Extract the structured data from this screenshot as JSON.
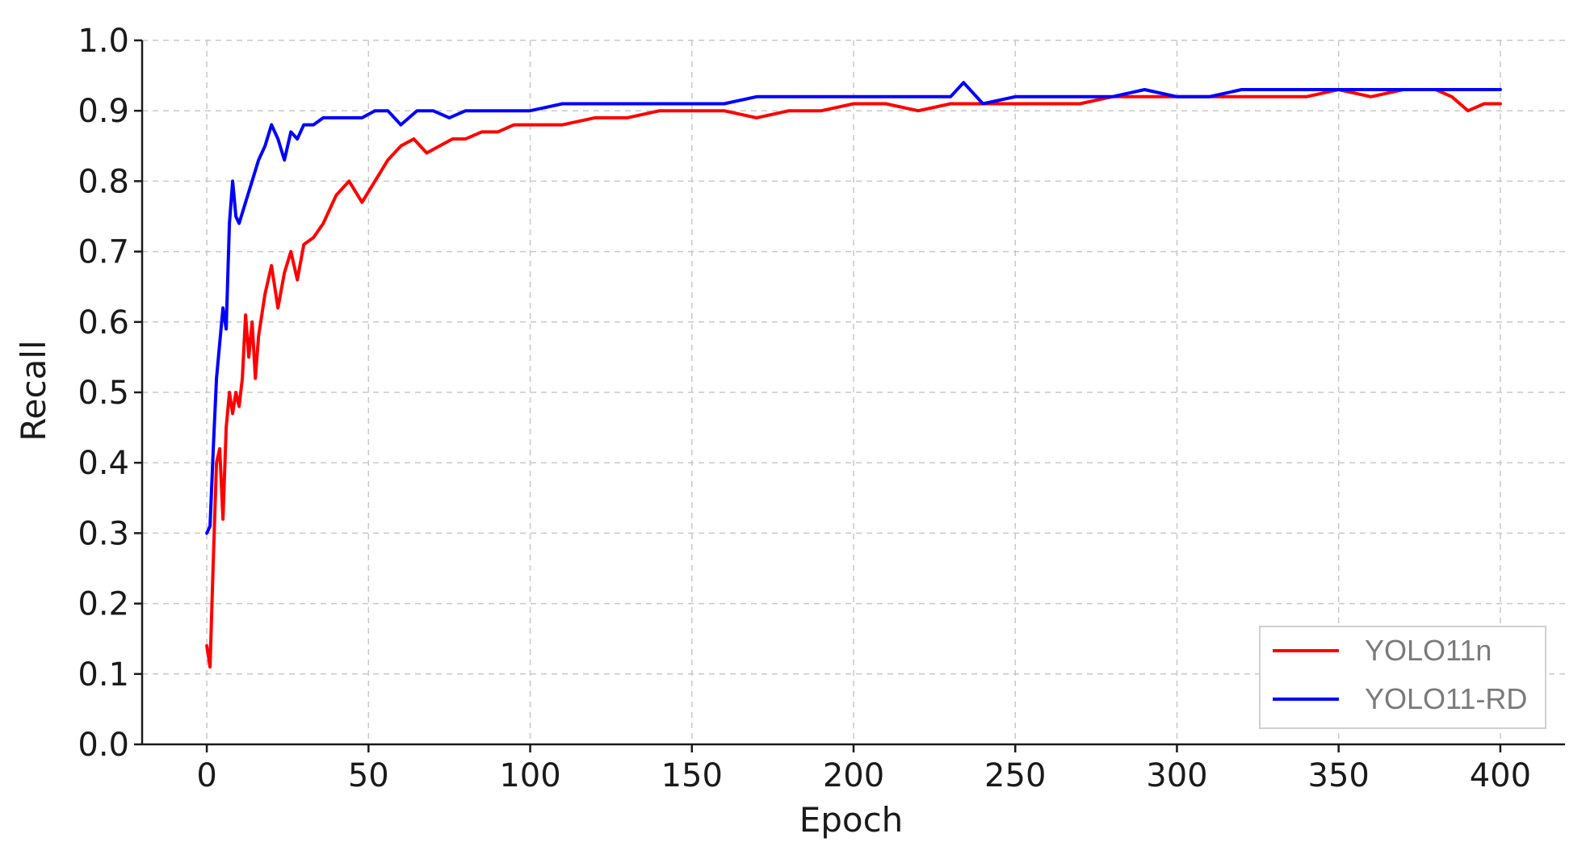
{
  "chart_data": {
    "type": "line",
    "title": "",
    "xlabel": "Epoch",
    "ylabel": "Recall",
    "xlim": [
      -20,
      420
    ],
    "ylim": [
      0.0,
      1.0
    ],
    "xticks": [
      "0",
      "50",
      "100",
      "150",
      "200",
      "250",
      "300",
      "350",
      "400"
    ],
    "yticks": [
      "0.0",
      "0.1",
      "0.2",
      "0.3",
      "0.4",
      "0.5",
      "0.6",
      "0.7",
      "0.8",
      "0.9",
      "1.0"
    ],
    "grid": true,
    "legend_position": "lower-right",
    "series": [
      {
        "name": "YOLO11n",
        "color": "#ff0000",
        "x": [
          0,
          1,
          2,
          3,
          4,
          5,
          6,
          7,
          8,
          9,
          10,
          11,
          12,
          13,
          14,
          15,
          16,
          18,
          20,
          22,
          24,
          26,
          28,
          30,
          33,
          36,
          40,
          44,
          48,
          52,
          56,
          60,
          64,
          68,
          72,
          76,
          80,
          85,
          90,
          95,
          100,
          110,
          120,
          130,
          140,
          150,
          160,
          170,
          180,
          190,
          200,
          210,
          220,
          230,
          240,
          250,
          260,
          270,
          280,
          290,
          300,
          310,
          320,
          330,
          340,
          350,
          360,
          370,
          380,
          385,
          390,
          395,
          400
        ],
        "values": [
          0.14,
          0.11,
          0.26,
          0.4,
          0.42,
          0.32,
          0.45,
          0.5,
          0.47,
          0.5,
          0.48,
          0.52,
          0.61,
          0.55,
          0.6,
          0.52,
          0.58,
          0.64,
          0.68,
          0.62,
          0.67,
          0.7,
          0.66,
          0.71,
          0.72,
          0.74,
          0.78,
          0.8,
          0.77,
          0.8,
          0.83,
          0.85,
          0.86,
          0.84,
          0.85,
          0.86,
          0.86,
          0.87,
          0.87,
          0.88,
          0.88,
          0.88,
          0.89,
          0.89,
          0.9,
          0.9,
          0.9,
          0.89,
          0.9,
          0.9,
          0.91,
          0.91,
          0.9,
          0.91,
          0.91,
          0.91,
          0.91,
          0.91,
          0.92,
          0.92,
          0.92,
          0.92,
          0.92,
          0.92,
          0.92,
          0.93,
          0.92,
          0.93,
          0.93,
          0.92,
          0.9,
          0.91,
          0.91
        ]
      },
      {
        "name": "YOLO11-RD",
        "color": "#0000ff",
        "x": [
          0,
          1,
          2,
          3,
          4,
          5,
          6,
          7,
          8,
          9,
          10,
          12,
          14,
          16,
          18,
          20,
          22,
          24,
          26,
          28,
          30,
          33,
          36,
          40,
          44,
          48,
          52,
          56,
          60,
          65,
          70,
          75,
          80,
          90,
          100,
          110,
          120,
          130,
          140,
          150,
          160,
          170,
          180,
          190,
          200,
          210,
          220,
          230,
          234,
          240,
          250,
          260,
          270,
          280,
          290,
          300,
          310,
          320,
          330,
          340,
          350,
          360,
          370,
          380,
          390,
          400
        ],
        "values": [
          0.3,
          0.31,
          0.42,
          0.52,
          0.57,
          0.62,
          0.59,
          0.74,
          0.8,
          0.75,
          0.74,
          0.77,
          0.8,
          0.83,
          0.85,
          0.88,
          0.86,
          0.83,
          0.87,
          0.86,
          0.88,
          0.88,
          0.89,
          0.89,
          0.89,
          0.89,
          0.9,
          0.9,
          0.88,
          0.9,
          0.9,
          0.89,
          0.9,
          0.9,
          0.9,
          0.91,
          0.91,
          0.91,
          0.91,
          0.91,
          0.91,
          0.92,
          0.92,
          0.92,
          0.92,
          0.92,
          0.92,
          0.92,
          0.94,
          0.91,
          0.92,
          0.92,
          0.92,
          0.92,
          0.93,
          0.92,
          0.92,
          0.93,
          0.93,
          0.93,
          0.93,
          0.93,
          0.93,
          0.93,
          0.93,
          0.93
        ]
      }
    ]
  }
}
